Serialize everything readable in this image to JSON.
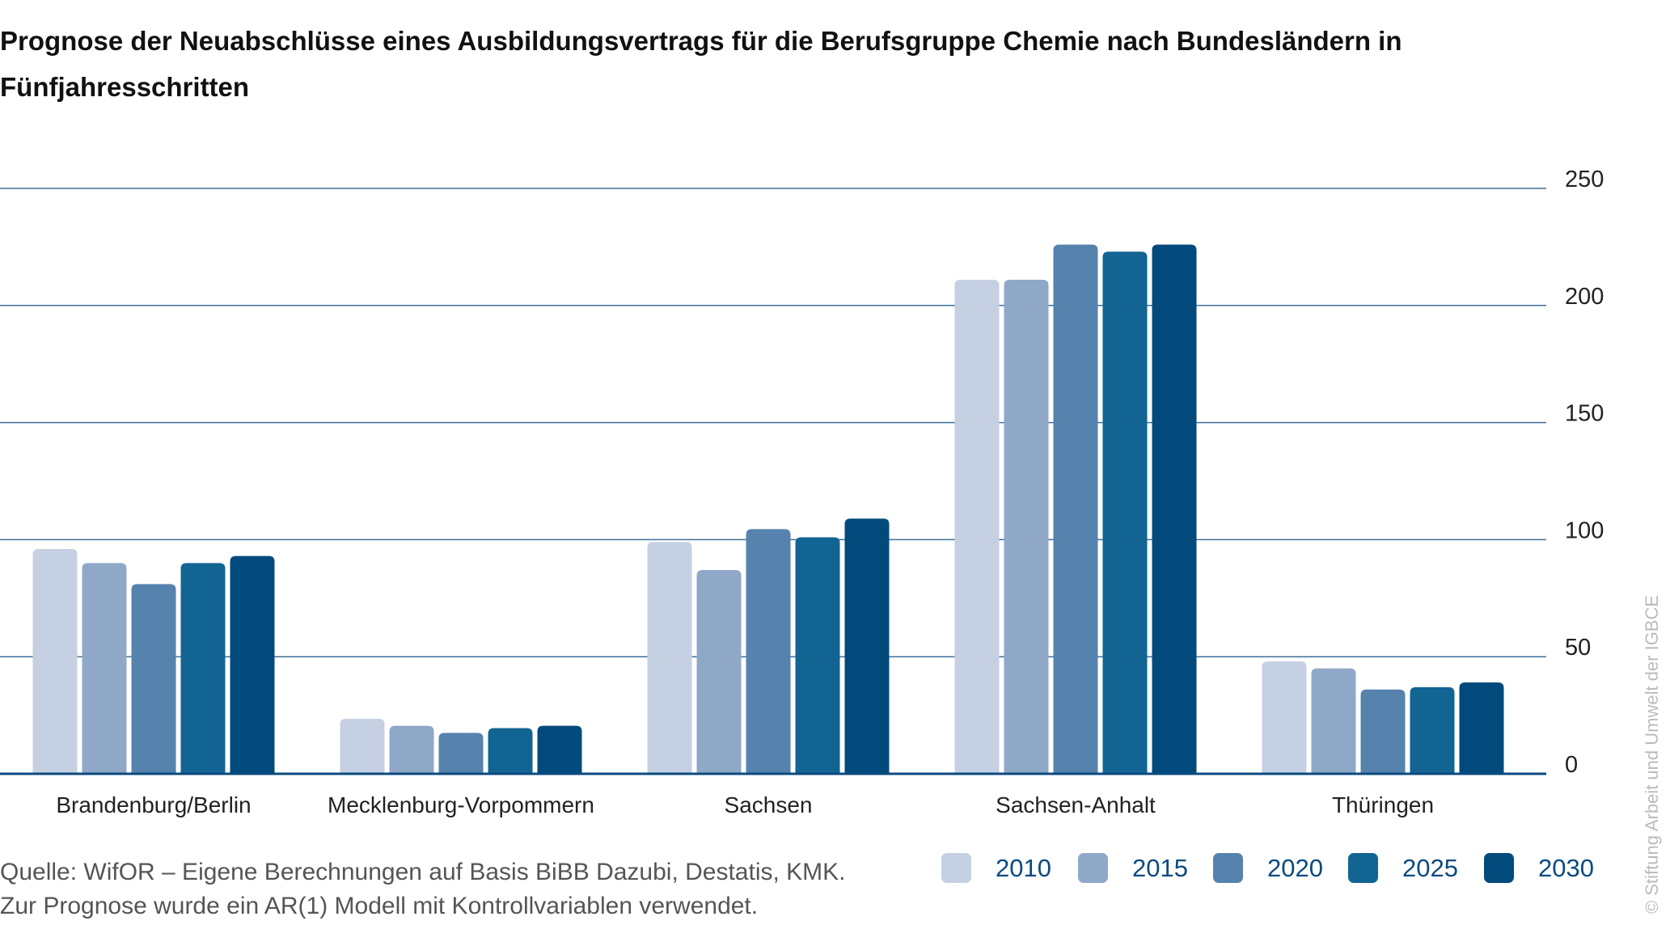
{
  "title": "Prognose der Neuabschlüsse eines Ausbildungsvertrags für die Berufsgruppe Chemie nach Bundesländern in Fünfjahresschritten",
  "source_lines": [
    "Quelle: WifOR – Eigene Berechnungen auf Basis BiBB Dazubi, Destatis, KMK.",
    "Zur Prognose wurde ein AR(1) Modell mit Kontrollvariablen verwendet."
  ],
  "copyright": "© Stiftung Arbeit und Umwelt der IGBCE",
  "chart_data": {
    "type": "bar",
    "title": "Prognose der Neuabschlüsse eines Ausbildungsvertrags für die Berufsgruppe Chemie nach Bundesländern in Fünfjahresschritten",
    "categories": [
      "Brandenburg/Berlin",
      "Mecklenburg-Vorpommern",
      "Sachsen",
      "Sachsen-Anhalt",
      "Thüringen"
    ],
    "series": [
      {
        "name": "2010",
        "color": "#c5d0e2",
        "values": [
          96,
          23.5,
          99,
          211,
          48
        ]
      },
      {
        "name": "2015",
        "color": "#8fa8c8",
        "values": [
          90,
          20.5,
          87,
          211,
          45
        ]
      },
      {
        "name": "2020",
        "color": "#5683ad",
        "values": [
          81,
          17.5,
          104.5,
          226,
          36
        ]
      },
      {
        "name": "2025",
        "color": "#126493",
        "values": [
          90,
          19.5,
          101,
          223,
          37
        ]
      },
      {
        "name": "2030",
        "color": "#034a7c",
        "values": [
          93,
          20.5,
          109,
          226,
          39
        ]
      }
    ],
    "yticks": [
      "0",
      "50",
      "100",
      "150",
      "200",
      "250"
    ],
    "ylim": [
      0,
      250
    ],
    "xlabel": "",
    "ylabel": "",
    "grid": true,
    "y_axis_side": "right",
    "legend_placement": "bottom-right"
  }
}
